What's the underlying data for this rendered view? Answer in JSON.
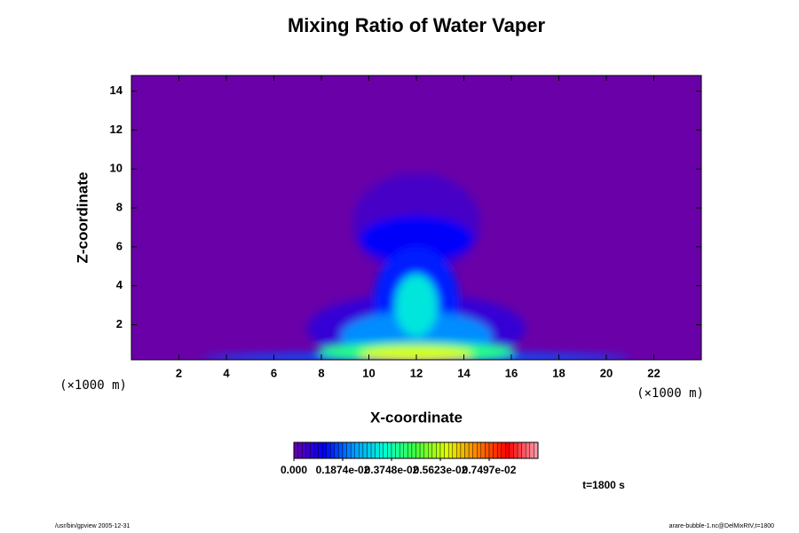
{
  "chart_data": {
    "type": "contour",
    "title": "Mixing Ratio of Water Vaper",
    "xlabel": "X-coordinate",
    "ylabel": "Z-coordinate",
    "x_unit": "(×1000 m)",
    "y_unit": "(×1000 m)",
    "xlim": [
      0,
      24
    ],
    "xticks": [
      2,
      4,
      6,
      8,
      10,
      12,
      14,
      16,
      18,
      20,
      22
    ],
    "ylim": [
      0.2,
      14.8
    ],
    "yticks": [
      2,
      4,
      6,
      8,
      10,
      12,
      14
    ],
    "background_value": 0,
    "blobs": [
      {
        "x": 12,
        "z": 7.2,
        "rx": 2.7,
        "rz": 2.6,
        "value": 0.0004
      },
      {
        "x": 12,
        "z": 1.8,
        "rx": 4.6,
        "rz": 1.8,
        "value": 0.0006
      },
      {
        "x": 12,
        "z": 6.4,
        "rx": 2.4,
        "rz": 1.2,
        "value": 0.0011
      },
      {
        "x": 12,
        "z": 3.2,
        "rx": 1.8,
        "rz": 2.8,
        "value": 0.0014
      },
      {
        "x": 12,
        "z": 0.3,
        "rx": 9,
        "rz": 0.25,
        "value": 0.0018
      },
      {
        "x": 12,
        "z": 1.4,
        "rx": 3.2,
        "rz": 1.3,
        "value": 0.0022
      },
      {
        "x": 12,
        "z": 3.0,
        "rx": 0.9,
        "rz": 1.6,
        "value": 0.0032
      },
      {
        "x": 12,
        "z": 0.6,
        "rx": 4.2,
        "rz": 0.5,
        "value": 0.0042
      },
      {
        "x": 12,
        "z": 0.5,
        "rx": 2.4,
        "rz": 0.4,
        "value": 0.0058
      }
    ],
    "clim": [
      0,
      0.00937
    ],
    "colorbar_ticks": [
      {
        "value": 0,
        "label": "0.000"
      },
      {
        "value": 0.001874,
        "label": "0.1874e-02"
      },
      {
        "value": 0.003748,
        "label": "0.3748e-02"
      },
      {
        "value": 0.005623,
        "label": "0.5623e-02"
      },
      {
        "value": 0.007497,
        "label": "0.7497e-02"
      }
    ],
    "colormap": [
      "#6a00a8",
      "#0000ff",
      "#00a0ff",
      "#00ffd0",
      "#40ff40",
      "#e0ff00",
      "#ff8000",
      "#ff0000",
      "#ffa0b0"
    ],
    "annotation": "t=1800 s",
    "footer_left": "/usr/bin/gpview 2005-12-31",
    "footer_right": "arare-bubble-1.nc@DelMixRtV,t=1800"
  }
}
